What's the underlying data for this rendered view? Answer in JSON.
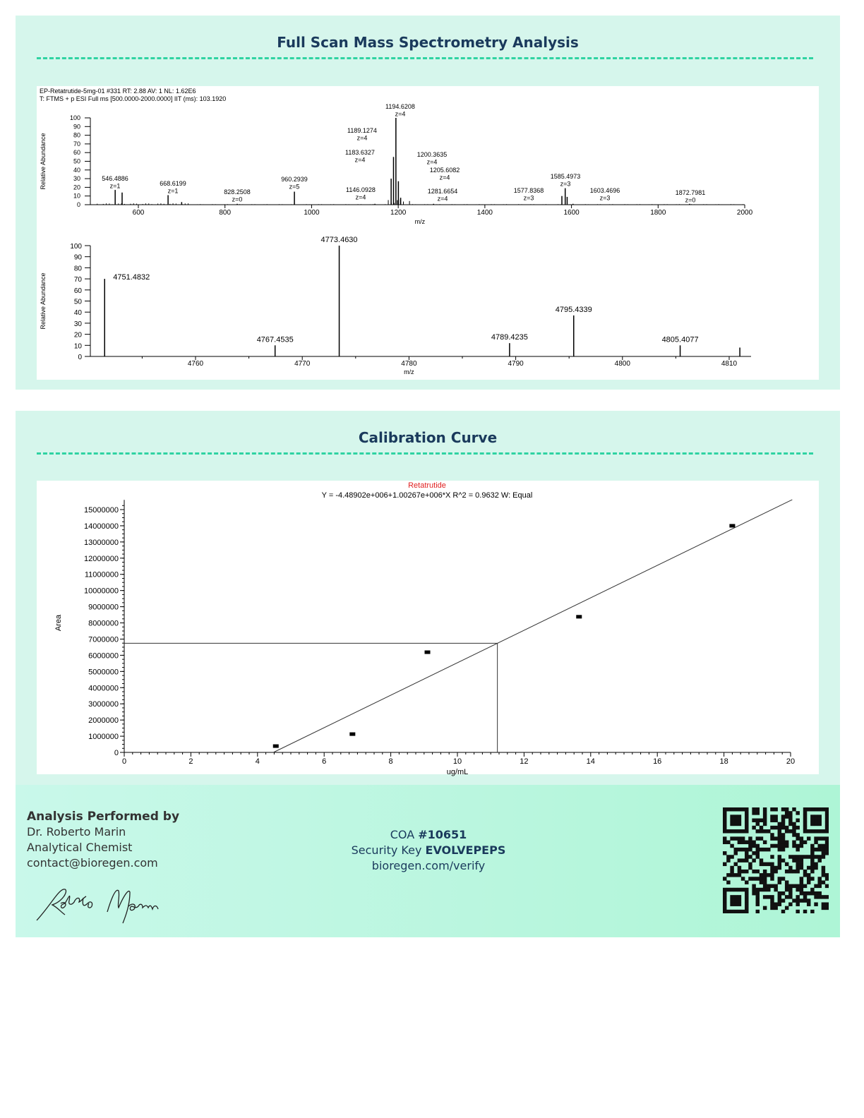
{
  "ms_section": {
    "title": "Full Scan Mass Spectrometry Analysis"
  },
  "cal_section": {
    "title": "Calibration Curve"
  },
  "chart_data": [
    {
      "type": "bar",
      "header_line1": "EP-Retatrutide-5mg-01 #331 RT: 2.88 AV: 1 NL: 1.62E6",
      "header_line2": "T: FTMS + p ESI Full ms [500.0000-2000.0000] IIT (ms): 103.1920",
      "xlabel": "m/z",
      "ylabel": "Relative Abundance",
      "xlim": [
        500,
        2000
      ],
      "ylim": [
        0,
        100
      ],
      "xticks": [
        600,
        800,
        1000,
        1200,
        1400,
        1600,
        1800,
        2000
      ],
      "yticks": [
        0,
        10,
        20,
        30,
        40,
        50,
        60,
        70,
        80,
        90,
        100
      ],
      "peaks": [
        {
          "mz": 546.4886,
          "abundance": 17,
          "label": "546.4886",
          "z": "z=1"
        },
        {
          "mz": 562.5,
          "abundance": 14
        },
        {
          "mz": 668.6199,
          "abundance": 11,
          "label": "668.6199",
          "z": "z=1"
        },
        {
          "mz": 700,
          "abundance": 3
        },
        {
          "mz": 828.2508,
          "abundance": 1,
          "label": "828.2508",
          "z": "z=0"
        },
        {
          "mz": 960.2939,
          "abundance": 15,
          "label": "960.2939",
          "z": "z=5"
        },
        {
          "mz": 1146.0928,
          "abundance": 1,
          "label": "1146.0928",
          "z": "z=4"
        },
        {
          "mz": 1183.6327,
          "abundance": 30,
          "label": "1183.6327",
          "z": "z=4"
        },
        {
          "mz": 1189.1274,
          "abundance": 55,
          "label": "1189.1274",
          "z": "z=4"
        },
        {
          "mz": 1194.6208,
          "abundance": 100,
          "label": "1194.6208",
          "z": "z=4"
        },
        {
          "mz": 1200.3635,
          "abundance": 27,
          "label": "1200.3635",
          "z": "z=4"
        },
        {
          "mz": 1205.6082,
          "abundance": 8,
          "label": "1205.6082",
          "z": "z=4"
        },
        {
          "mz": 1281.6654,
          "abundance": 1,
          "label": "1281.6654",
          "z": "z=4"
        },
        {
          "mz": 1577.8368,
          "abundance": 10,
          "label": "1577.8368",
          "z": "z=3"
        },
        {
          "mz": 1585.4973,
          "abundance": 19,
          "label": "1585.4973",
          "z": "z=3"
        },
        {
          "mz": 1590,
          "abundance": 9
        },
        {
          "mz": 1603.4696,
          "abundance": 1,
          "label": "1603.4696",
          "z": "z=3"
        },
        {
          "mz": 1872.7981,
          "abundance": 1,
          "label": "1872.7981",
          "z": "z=0"
        }
      ]
    },
    {
      "type": "bar",
      "xlabel": "m/z",
      "ylabel": "Relative Abundance",
      "xlim": [
        4751,
        4812
      ],
      "ylim": [
        0,
        100
      ],
      "xticks": [
        4760,
        4770,
        4780,
        4790,
        4800,
        4810
      ],
      "yticks": [
        0,
        10,
        20,
        30,
        40,
        50,
        60,
        70,
        80,
        90,
        100
      ],
      "peaks": [
        {
          "mz": 4751.4832,
          "abundance": 70,
          "label": "4751.4832"
        },
        {
          "mz": 4767.4535,
          "abundance": 10,
          "label": "4767.4535"
        },
        {
          "mz": 4773.463,
          "abundance": 100,
          "label": "4773.4630"
        },
        {
          "mz": 4789.4235,
          "abundance": 12,
          "label": "4789.4235"
        },
        {
          "mz": 4795.4339,
          "abundance": 37,
          "label": "4795.4339"
        },
        {
          "mz": 4805.4077,
          "abundance": 10,
          "label": "4805.4077"
        },
        {
          "mz": 4811,
          "abundance": 8
        }
      ]
    },
    {
      "type": "scatter",
      "title": "Retatrutide",
      "equation": "Y = -4.48902e+006+1.00267e+006*X   R^2 = 0.9632   W: Equal",
      "xlabel": "ug/mL",
      "ylabel": "Area",
      "xlim": [
        0,
        20
      ],
      "ylim": [
        0,
        15000000
      ],
      "xticks": [
        0,
        2,
        4,
        6,
        8,
        10,
        12,
        14,
        16,
        18,
        20
      ],
      "yticks": [
        0,
        1000000,
        2000000,
        3000000,
        4000000,
        5000000,
        6000000,
        7000000,
        8000000,
        9000000,
        10000000,
        11000000,
        12000000,
        13000000,
        14000000,
        15000000
      ],
      "points": [
        [
          4.55,
          390000
        ],
        [
          6.85,
          1130000
        ],
        [
          9.1,
          6190000
        ],
        [
          13.65,
          8380000
        ],
        [
          18.25,
          14000000
        ]
      ],
      "fit": {
        "intercept": -4489020,
        "slope": 1002670
      },
      "crosshair": {
        "x": 11.2,
        "y": 6740000
      },
      "title_color": "#e02020"
    }
  ],
  "footer": {
    "performed_by": "Analysis Performed by",
    "name": "Dr. Roberto Marin",
    "role": "Analytical Chemist",
    "email": "contact@bioregen.com",
    "coa_label": "COA ",
    "coa_number": "#10651",
    "key_label": "Security Key ",
    "key_value": "EVOLVEPEPS",
    "verify_url": "bioregen.com/verify",
    "signature": "Roberto Marin"
  },
  "colors": {
    "title": "#1a3a5c",
    "accent": "#2fd3a2",
    "panel": "#d6f6ec"
  }
}
